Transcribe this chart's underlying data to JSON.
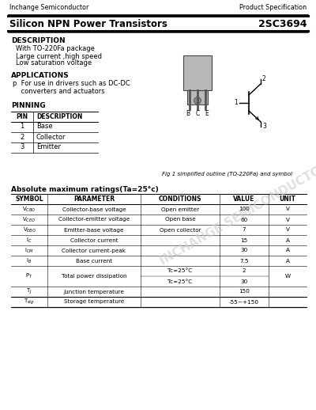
{
  "header_left": "Inchange Semiconductor",
  "header_right": "Product Specification",
  "title_left": "Silicon NPN Power Transistors",
  "title_right": "2SC3694",
  "section_description": "DESCRIPTION",
  "desc_lines": [
    "With TO-220Fa package",
    "Large current ,high speed",
    "Low saturation voltage"
  ],
  "section_applications": "APPLICATIONS",
  "app_line1": "p  For use in drivers such as DC-DC",
  "app_line2": "    converters and actuators",
  "section_pinning": "PINNING",
  "pin_headers": [
    "PIN",
    "DESCRIPTION"
  ],
  "pin_rows": [
    [
      "1",
      "Base"
    ],
    [
      "2",
      "Collector"
    ],
    [
      "3",
      "Emitter"
    ]
  ],
  "fig_caption": "Fig 1 simplified outline (TO-220Fa) and symbol",
  "section_abs": "Absolute maximum ratings(Ta=25°c)",
  "abs_headers": [
    "SYMBOL",
    "PARAMETER",
    "CONDITIONS",
    "VALUE",
    "UNIT"
  ],
  "abs_rows": [
    [
      "Vcbo",
      "Collector-base voltage",
      "Open emitter",
      "100",
      "V"
    ],
    [
      "Vceo",
      "Collector-emitter voltage",
      "Open base",
      "60",
      "V"
    ],
    [
      "Vebo",
      "Emitter-base voltage",
      "Open collector",
      "7",
      "V"
    ],
    [
      "Ic",
      "Collector current",
      "",
      "15",
      "A"
    ],
    [
      "Icm",
      "Collector current-peak",
      "",
      "30",
      "A"
    ],
    [
      "Ib",
      "Base current",
      "",
      "7.5",
      "A"
    ],
    [
      "P",
      "Total power dissipation",
      "Tc=25°C",
      "2",
      "W"
    ],
    [
      "",
      "",
      "Tc=25°C",
      "30",
      ""
    ],
    [
      "Tj",
      "Junction temperature",
      "",
      "150",
      ""
    ],
    [
      "Tstg",
      "Storage temperature",
      "",
      "-55~+150",
      ""
    ]
  ],
  "sym_rows": [
    [
      "Vcbo",
      "Vceo",
      "Vebo",
      "Ic",
      "Icm",
      "Ib",
      "P",
      "",
      "Tj",
      "Tstg"
    ]
  ],
  "watermark_text": "INCHANGE SEMICONDUCTOR"
}
